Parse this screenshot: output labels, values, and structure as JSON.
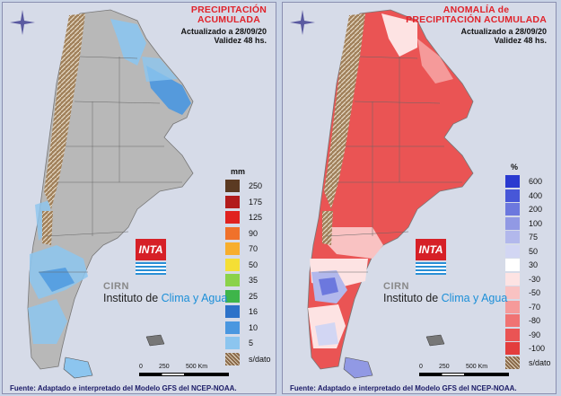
{
  "panels": [
    {
      "title_line1": "PRECIPITACIÓN",
      "title_line2": "ACUMULADA",
      "updated": "Actualizado a 28/09/20",
      "validity": "Validez 48 hs.",
      "legend_unit": "mm",
      "legend": [
        {
          "label": "250",
          "color": "#5b3a22"
        },
        {
          "label": "175",
          "color": "#b21b1b"
        },
        {
          "label": "125",
          "color": "#e0221f"
        },
        {
          "label": "90",
          "color": "#f0712a"
        },
        {
          "label": "70",
          "color": "#f7ae2d"
        },
        {
          "label": "50",
          "color": "#f5df35"
        },
        {
          "label": "35",
          "color": "#8bd24a"
        },
        {
          "label": "25",
          "color": "#3eb54a"
        },
        {
          "label": "16",
          "color": "#2d72c9"
        },
        {
          "label": "10",
          "color": "#4a97e0"
        },
        {
          "label": "5",
          "color": "#8cc5ef"
        },
        {
          "label": "s/dato",
          "color": "#8a6a4a"
        }
      ],
      "source": "Fuente: Adaptado e interpretado del Modelo GFS del NCEP-NOAA."
    },
    {
      "title_line1": "ANOMALÍA de",
      "title_line2": "PRECIPITACIÓN ACUMULADA",
      "updated": "Actualizado a 28/09/20",
      "validity": "Validez 48 hs.",
      "legend_unit": "%",
      "legend": [
        {
          "label": "600",
          "color": "#2a3ad0"
        },
        {
          "label": "400",
          "color": "#4757d8"
        },
        {
          "label": "200",
          "color": "#6c78de"
        },
        {
          "label": "100",
          "color": "#9199e4"
        },
        {
          "label": "75",
          "color": "#b2b8ec"
        },
        {
          "label": "50",
          "color": "#d2d6f3"
        },
        {
          "label": "30",
          "color": "#ffffff"
        },
        {
          "label": "-30",
          "color": "#fde3e3"
        },
        {
          "label": "-50",
          "color": "#f9c2c2"
        },
        {
          "label": "-70",
          "color": "#f59a9a"
        },
        {
          "label": "-80",
          "color": "#f07373"
        },
        {
          "label": "-90",
          "color": "#ea5454"
        },
        {
          "label": "-100",
          "color": "#e33d3d"
        },
        {
          "label": "s/dato",
          "color": "#8a6a4a"
        }
      ],
      "source": "Fuente: Adaptado e interpretado del Modelo GFS del NCEP-NOAA."
    }
  ],
  "logo": {
    "name": "INTA",
    "cirn": "CIRN",
    "institute_a": "Instituto de ",
    "institute_b": "Clima y Agua"
  },
  "scale": {
    "t0": "0",
    "t1": "250",
    "t2": "500 Km"
  }
}
